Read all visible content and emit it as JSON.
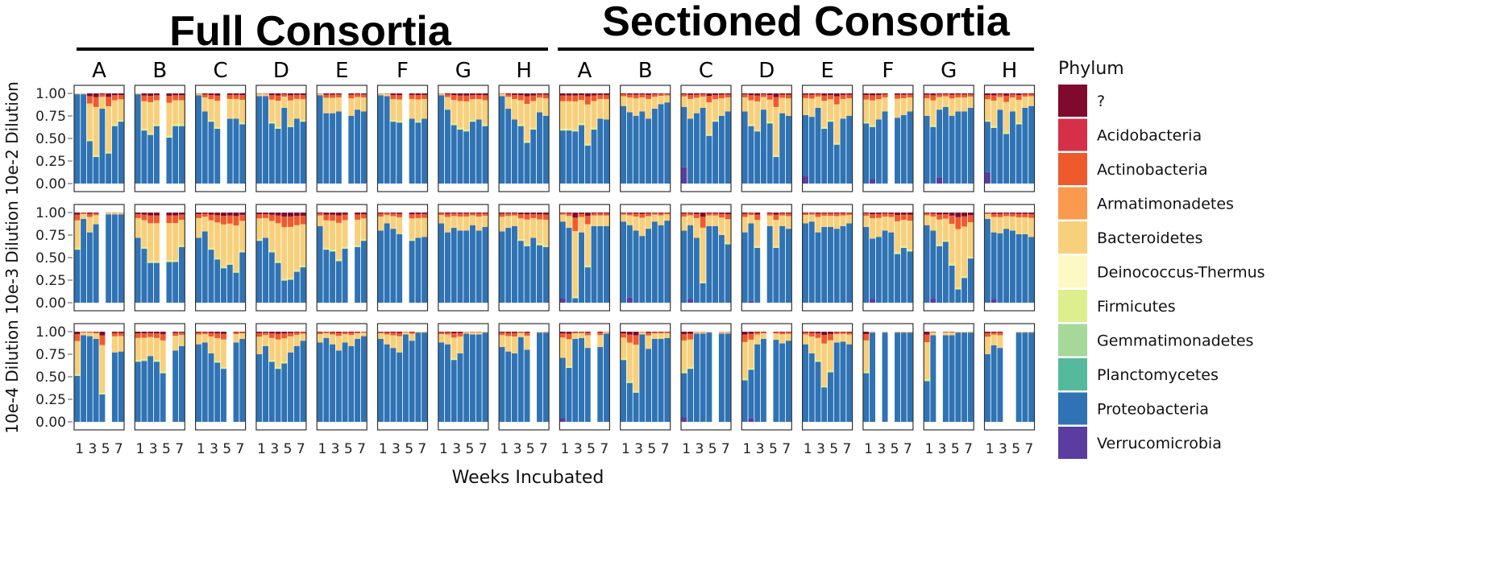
{
  "chart_data": {
    "type": "stacked-bar-facet-grid",
    "group_titles": [
      "Full Consortia",
      "Sectioned Consortia"
    ],
    "columns": [
      "A",
      "B",
      "C",
      "D",
      "E",
      "F",
      "G",
      "H"
    ],
    "rows": [
      "10e-2 Dilution",
      "10e-3 Dilution",
      "10e-4 Dilution"
    ],
    "xlabel": "Weeks Incubated",
    "x_tick_text": "1 3 5 7",
    "weeks": [
      1,
      2,
      3,
      4,
      5,
      6,
      7,
      8
    ],
    "ylim": [
      0,
      1
    ],
    "y_ticks": [
      "1.00",
      "0.75",
      "0.50",
      "0.25",
      "0.00"
    ],
    "legend": {
      "title": "Phylum",
      "placement": "right",
      "entries": [
        {
          "name": "?",
          "color": "#7f0a2e"
        },
        {
          "name": "Acidobacteria",
          "color": "#d53047"
        },
        {
          "name": "Actinobacteria",
          "color": "#ef5a2d"
        },
        {
          "name": "Armatimonadetes",
          "color": "#f99a4e"
        },
        {
          "name": "Bacteroidetes",
          "color": "#f7d07c"
        },
        {
          "name": "Deinococcus-Thermus",
          "color": "#fcf9c4"
        },
        {
          "name": "Firmicutes",
          "color": "#ddef8c"
        },
        {
          "name": "Gemmatimonadetes",
          "color": "#a4d99a"
        },
        {
          "name": "Planctomycetes",
          "color": "#55b99b"
        },
        {
          "name": "Proteobacteria",
          "color": "#2f73b4"
        },
        {
          "name": "Verrucomicrobia",
          "color": "#5a3d9e"
        }
      ]
    },
    "composition_order": [
      "Verrucomicrobia",
      "Proteobacteria",
      "Planctomycetes",
      "Gemmatimonadetes",
      "Firmicutes",
      "Deinococcus-Thermus",
      "Bacteroidetes",
      "Armatimonadetes",
      "Actinobacteria",
      "Acidobacteria",
      "?"
    ],
    "panels": [
      [
        {
          "proteo": [
            0.99,
            0.99,
            0.48,
            0.3,
            0.83,
            0.34,
            0.65,
            0.7
          ]
        },
        {
          "proteo": [
            0.99,
            0.6,
            0.55,
            0.65,
            null,
            0.52,
            0.65,
            0.65
          ]
        },
        {
          "proteo": [
            0.98,
            0.8,
            0.7,
            0.62,
            null,
            0.72,
            0.72,
            0.67
          ]
        },
        {
          "proteo": [
            0.97,
            0.97,
            0.68,
            0.62,
            0.84,
            0.64,
            0.72,
            0.7
          ]
        },
        {
          "proteo": [
            0.98,
            0.78,
            0.78,
            0.8,
            null,
            0.75,
            0.82,
            0.8
          ]
        },
        {
          "proteo": [
            0.98,
            0.97,
            0.7,
            0.69,
            null,
            0.72,
            0.69,
            0.72
          ]
        },
        {
          "proteo": [
            0.98,
            0.82,
            0.66,
            0.61,
            0.59,
            0.7,
            0.71,
            0.65
          ]
        },
        {
          "proteo": [
            0.97,
            0.83,
            0.71,
            0.65,
            0.46,
            0.61,
            0.79,
            0.75
          ]
        },
        {
          "proteo": [
            0.6,
            0.6,
            0.59,
            0.66,
            0.43,
            0.61,
            0.72,
            0.71
          ],
          "verru": [
            0,
            0,
            0,
            0,
            0,
            0,
            0,
            0
          ]
        },
        {
          "proteo": [
            0.86,
            0.79,
            0.75,
            0.8,
            0.72,
            0.83,
            0.88,
            0.9
          ]
        },
        {
          "proteo": [
            0.85,
            0.72,
            0.78,
            0.84,
            0.54,
            0.7,
            0.75,
            0.8
          ],
          "verru": [
            0.18,
            0,
            0,
            0,
            0,
            0,
            0,
            0
          ]
        },
        {
          "proteo": [
            0.8,
            0.65,
            0.59,
            0.82,
            0.68,
            0.3,
            0.78,
            0.75
          ]
        },
        {
          "proteo": [
            0.76,
            0.74,
            0.84,
            0.62,
            0.7,
            0.44,
            0.72,
            0.75
          ],
          "verru": [
            0.08,
            0,
            0,
            0,
            0,
            0,
            0,
            0
          ]
        },
        {
          "proteo": [
            0.68,
            0.64,
            0.71,
            0.8,
            null,
            0.73,
            0.76,
            0.8
          ],
          "verru": [
            0,
            0.05,
            0,
            0,
            0,
            0,
            0,
            0
          ]
        },
        {
          "proteo": [
            0.75,
            0.64,
            0.82,
            0.85,
            0.75,
            0.8,
            0.8,
            0.84
          ],
          "verru": [
            0,
            0,
            0.07,
            0,
            0,
            0,
            0,
            0
          ]
        },
        {
          "proteo": [
            0.7,
            0.63,
            0.82,
            0.56,
            0.8,
            0.67,
            0.84,
            0.86
          ],
          "verru": [
            0.13,
            0,
            0,
            0,
            0,
            0,
            0,
            0
          ]
        }
      ],
      [
        {
          "proteo": [
            0.6,
            0.93,
            0.78,
            0.87,
            null,
            0.98,
            0.98,
            0.98
          ]
        },
        {
          "proteo": [
            0.72,
            0.61,
            0.45,
            0.45,
            null,
            0.46,
            0.46,
            0.63
          ]
        },
        {
          "proteo": [
            0.72,
            0.79,
            0.6,
            0.49,
            0.39,
            0.43,
            0.34,
            0.57
          ]
        },
        {
          "proteo": [
            0.7,
            0.72,
            0.57,
            0.45,
            0.25,
            0.26,
            0.35,
            0.4
          ]
        },
        {
          "proteo": [
            0.85,
            0.6,
            0.58,
            0.47,
            0.61,
            null,
            0.63,
            0.7
          ]
        },
        {
          "proteo": [
            0.8,
            0.88,
            0.82,
            0.76,
            null,
            0.7,
            0.72,
            0.73
          ]
        },
        {
          "proteo": [
            0.88,
            0.78,
            0.83,
            0.8,
            0.8,
            0.86,
            0.8,
            0.84
          ]
        },
        {
          "proteo": [
            0.79,
            0.83,
            0.85,
            0.7,
            0.64,
            0.72,
            0.65,
            0.63
          ]
        },
        {
          "proteo": [
            0.9,
            0.83,
            0.05,
            0.78,
            0.4,
            0.85,
            0.85,
            0.85
          ],
          "verru": [
            0.05,
            0,
            0,
            0,
            0,
            0,
            0,
            0
          ]
        },
        {
          "proteo": [
            0.9,
            0.86,
            0.8,
            0.74,
            0.82,
            0.9,
            0.86,
            0.91
          ],
          "verru": [
            0,
            0.06,
            0,
            0,
            0,
            0,
            0,
            0
          ]
        },
        {
          "proteo": [
            0.8,
            0.86,
            0.72,
            0.22,
            0.85,
            0.85,
            0.75,
            0.66
          ],
          "verru": [
            0,
            0.04,
            0,
            0,
            0,
            0,
            0,
            0
          ]
        },
        {
          "proteo": [
            0.78,
            0.88,
            0.62,
            null,
            0.85,
            0.62,
            0.85,
            0.82
          ],
          "verru": [
            0,
            0.02,
            0,
            0,
            0,
            0,
            0,
            0
          ]
        },
        {
          "proteo": [
            0.88,
            0.9,
            0.78,
            0.84,
            0.84,
            0.82,
            0.85,
            0.88
          ]
        },
        {
          "proteo": [
            0.84,
            0.71,
            0.73,
            0.8,
            0.78,
            0.55,
            0.62,
            0.58
          ],
          "verru": [
            0,
            0.04,
            0,
            0,
            0,
            0,
            0,
            0
          ]
        },
        {
          "proteo": [
            0.86,
            0.8,
            0.64,
            0.69,
            0.42,
            0.15,
            0.28,
            0.5
          ],
          "verru": [
            0,
            0.05,
            0,
            0,
            0,
            0,
            0,
            0
          ]
        },
        {
          "proteo": [
            0.93,
            0.78,
            0.77,
            0.82,
            0.8,
            0.76,
            0.76,
            0.73
          ],
          "verru": [
            0,
            0.04,
            0,
            0,
            0,
            0,
            0,
            0
          ]
        }
      ],
      [
        {
          "proteo": [
            0.52,
            0.96,
            0.95,
            0.92,
            0.31,
            null,
            0.77,
            0.78
          ]
        },
        {
          "proteo": [
            0.68,
            0.69,
            0.73,
            0.68,
            0.55,
            null,
            0.79,
            0.84
          ]
        },
        {
          "proteo": [
            0.86,
            0.88,
            0.76,
            0.67,
            0.6,
            null,
            0.88,
            0.92
          ]
        },
        {
          "proteo": [
            0.75,
            0.84,
            0.68,
            0.6,
            0.66,
            0.77,
            0.84,
            0.9
          ]
        },
        {
          "proteo": [
            0.88,
            0.93,
            0.86,
            0.79,
            0.88,
            0.84,
            0.92,
            0.95
          ]
        },
        {
          "proteo": [
            0.92,
            0.86,
            0.82,
            0.77,
            0.97,
            0.9,
            0.99,
            0.99
          ]
        },
        {
          "proteo": [
            0.88,
            0.86,
            0.7,
            0.76,
            0.98,
            0.97,
            0.97,
            0.99
          ]
        },
        {
          "proteo": [
            0.83,
            0.78,
            0.76,
            0.94,
            0.8,
            null,
            0.99,
            0.99
          ]
        },
        {
          "proteo": [
            0.71,
            0.61,
            0.92,
            0.93,
            0.82,
            null,
            0.83,
            0.98
          ],
          "verru": [
            0.04,
            0,
            0,
            0,
            0,
            0,
            0,
            0
          ]
        },
        {
          "proteo": [
            0.7,
            0.44,
            0.33,
            0.97,
            0.81,
            0.92,
            0.92,
            0.93
          ]
        },
        {
          "proteo": [
            0.55,
            0.6,
            0.98,
            0.98,
            0.99,
            null,
            0.98,
            0.98
          ],
          "verru": [
            0.05,
            0,
            0,
            0,
            0,
            0,
            0,
            0
          ]
        },
        {
          "proteo": [
            0.47,
            0.59,
            0.86,
            0.92,
            null,
            0.91,
            0.87,
            0.9
          ],
          "verru": [
            0,
            0.04,
            0,
            0,
            0,
            0,
            0,
            0
          ]
        },
        {
          "proteo": [
            0.86,
            0.76,
            0.68,
            0.39,
            0.56,
            0.88,
            0.89,
            0.86
          ]
        },
        {
          "proteo": [
            0.55,
            0.99,
            null,
            0.99,
            null,
            0.99,
            0.99,
            0.99
          ]
        },
        {
          "proteo": [
            0.46,
            0.96,
            null,
            0.96,
            0.96,
            0.99,
            0.99,
            0.99
          ]
        },
        {
          "proteo": [
            0.75,
            0.85,
            0.82,
            null,
            null,
            0.99,
            0.99,
            0.99
          ]
        }
      ]
    ]
  }
}
